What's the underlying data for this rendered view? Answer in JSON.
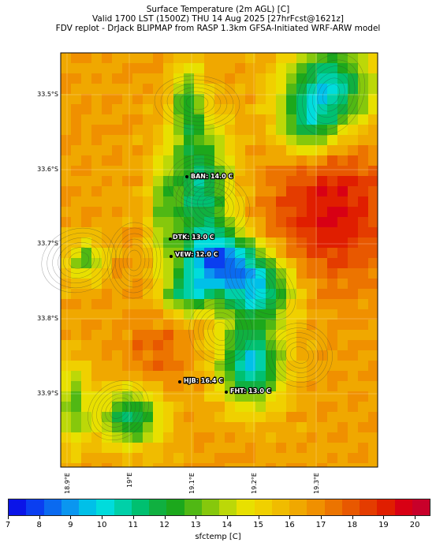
{
  "header": {
    "line1": "Surface Temperature (2m AGL) [C]",
    "line2": "Valid 1700 LST (1500Z) THU 14 Aug 2025 [27hrFcst@1621z]",
    "line3": "FDV replot - DrJack BLIPMAP from RASP 1.3km GFSA-Initiated WRF-ARW model"
  },
  "map": {
    "lat_labels": [
      "33.5°S",
      "33.6°S",
      "33.7°S",
      "33.8°S",
      "33.9°S"
    ],
    "lon_labels": [
      "18.9°E",
      "19°E",
      "19.1°E",
      "19.2°E",
      "19.3°E"
    ],
    "stations": [
      {
        "id": "BAN",
        "label": "BAN: 14.0 C",
        "temp": 14.0
      },
      {
        "id": "DTK",
        "label": "DTK: 13.0 C",
        "temp": 13.0
      },
      {
        "id": "VEW",
        "label": "VEW: 12.0 C",
        "temp": 12.0
      },
      {
        "id": "HJB",
        "label": "HJB: 16.4 C",
        "temp": 16.4
      },
      {
        "id": "FHT",
        "label": "FHT: 13.0 C",
        "temp": 13.0
      }
    ]
  },
  "colorbar": {
    "label": "sfctemp [C]",
    "ticks": [
      "7",
      "8",
      "9",
      "10",
      "11",
      "12",
      "13",
      "14",
      "15",
      "16",
      "17",
      "18",
      "19",
      "20"
    ],
    "range": [
      7,
      20.5
    ],
    "colors": [
      "#0a14e8",
      "#0a3ef0",
      "#0a6af0",
      "#0a96f0",
      "#00c0e8",
      "#00dcdc",
      "#00d0a8",
      "#00c070",
      "#10b040",
      "#1ca81c",
      "#50b814",
      "#86c80c",
      "#bcd808",
      "#e8e000",
      "#f0d000",
      "#f0bc00",
      "#f0a800",
      "#f09000",
      "#ec7400",
      "#e85800",
      "#e43c00",
      "#e01e00",
      "#d80014",
      "#c8002a"
    ]
  }
}
